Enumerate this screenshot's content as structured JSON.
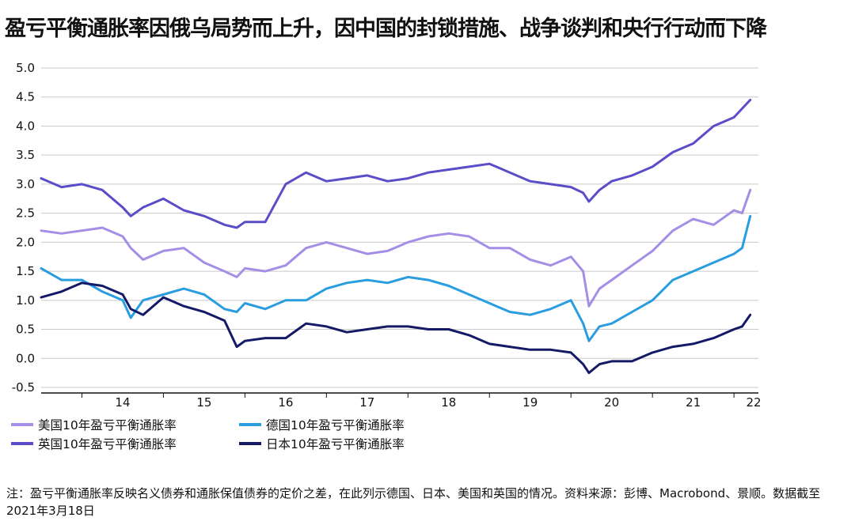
{
  "title": "盈亏平衡通胀率因俄乌局势而上升，因中国的封锁措施、战争谈判和央行行动而下降",
  "footnote": "注：盈亏平衡通胀率反映名义债券和通胀保值债券的定价之差，在此列示德国、日本、美国和英国的情况。资料来源：彭博、Macrobond、景顺。数据截至2021年3月18日",
  "chart_data": {
    "type": "line",
    "title": "盈亏平衡通胀率因俄乌局势而上升，因中国的封锁措施、战争谈判和央行行动而下降",
    "xlabel": "",
    "ylabel": "",
    "x_ticks": [
      "14",
      "15",
      "16",
      "17",
      "18",
      "19",
      "20",
      "21",
      "22"
    ],
    "y_ticks": [
      "5.0",
      "4.5",
      "4.0",
      "3.5",
      "3.0",
      "2.5",
      "2.0",
      "1.5",
      "1.0",
      "0.5",
      "0.0",
      "-0.5"
    ],
    "ylim": [
      -0.5,
      5.0
    ],
    "xlim": [
      2013.5,
      2022.3
    ],
    "grid": "horizontal",
    "legend_position": "bottom",
    "x": [
      2013.5,
      2013.75,
      2014.0,
      2014.25,
      2014.5,
      2014.6,
      2014.75,
      2015.0,
      2015.25,
      2015.5,
      2015.75,
      2015.9,
      2016.0,
      2016.25,
      2016.5,
      2016.75,
      2017.0,
      2017.25,
      2017.5,
      2017.75,
      2018.0,
      2018.25,
      2018.5,
      2018.75,
      2019.0,
      2019.25,
      2019.5,
      2019.75,
      2020.0,
      2020.15,
      2020.22,
      2020.35,
      2020.5,
      2020.75,
      2021.0,
      2021.25,
      2021.5,
      2021.75,
      2022.0,
      2022.1,
      2022.2
    ],
    "series": [
      {
        "name": "美国10年盈亏平衡通胀率",
        "color": "#a48ee6",
        "values": [
          2.2,
          2.15,
          2.2,
          2.25,
          2.1,
          1.9,
          1.7,
          1.85,
          1.9,
          1.65,
          1.5,
          1.4,
          1.55,
          1.5,
          1.6,
          1.9,
          2.0,
          1.9,
          1.8,
          1.85,
          2.0,
          2.1,
          2.15,
          2.1,
          1.9,
          1.9,
          1.7,
          1.6,
          1.75,
          1.5,
          0.9,
          1.2,
          1.35,
          1.6,
          1.85,
          2.2,
          2.4,
          2.3,
          2.55,
          2.5,
          2.9
        ]
      },
      {
        "name": "英国10年盈亏平衡通胀率",
        "color": "#5b4cc8",
        "values": [
          3.1,
          2.95,
          3.0,
          2.9,
          2.6,
          2.45,
          2.6,
          2.75,
          2.55,
          2.45,
          2.3,
          2.25,
          2.35,
          2.35,
          3.0,
          3.2,
          3.05,
          3.1,
          3.15,
          3.05,
          3.1,
          3.2,
          3.25,
          3.3,
          3.35,
          3.2,
          3.05,
          3.0,
          2.95,
          2.85,
          2.7,
          2.9,
          3.05,
          3.15,
          3.3,
          3.55,
          3.7,
          4.0,
          4.15,
          4.3,
          4.45
        ]
      },
      {
        "name": "德国10年盈亏平衡通胀率",
        "color": "#2a9de0",
        "values": [
          1.55,
          1.35,
          1.35,
          1.15,
          1.0,
          0.7,
          1.0,
          1.1,
          1.2,
          1.1,
          0.85,
          0.8,
          0.95,
          0.85,
          1.0,
          1.0,
          1.2,
          1.3,
          1.35,
          1.3,
          1.4,
          1.35,
          1.25,
          1.1,
          0.95,
          0.8,
          0.75,
          0.85,
          1.0,
          0.6,
          0.3,
          0.55,
          0.6,
          0.8,
          1.0,
          1.35,
          1.5,
          1.65,
          1.8,
          1.9,
          2.45
        ]
      },
      {
        "name": "日本10年盈亏平衡通胀率",
        "color": "#141a66",
        "values": [
          1.05,
          1.15,
          1.3,
          1.25,
          1.1,
          0.85,
          0.75,
          1.05,
          0.9,
          0.8,
          0.65,
          0.2,
          0.3,
          0.35,
          0.35,
          0.6,
          0.55,
          0.45,
          0.5,
          0.55,
          0.55,
          0.5,
          0.5,
          0.4,
          0.25,
          0.2,
          0.15,
          0.15,
          0.1,
          -0.1,
          -0.25,
          -0.1,
          -0.05,
          -0.05,
          0.1,
          0.2,
          0.25,
          0.35,
          0.5,
          0.55,
          0.75
        ]
      }
    ]
  }
}
